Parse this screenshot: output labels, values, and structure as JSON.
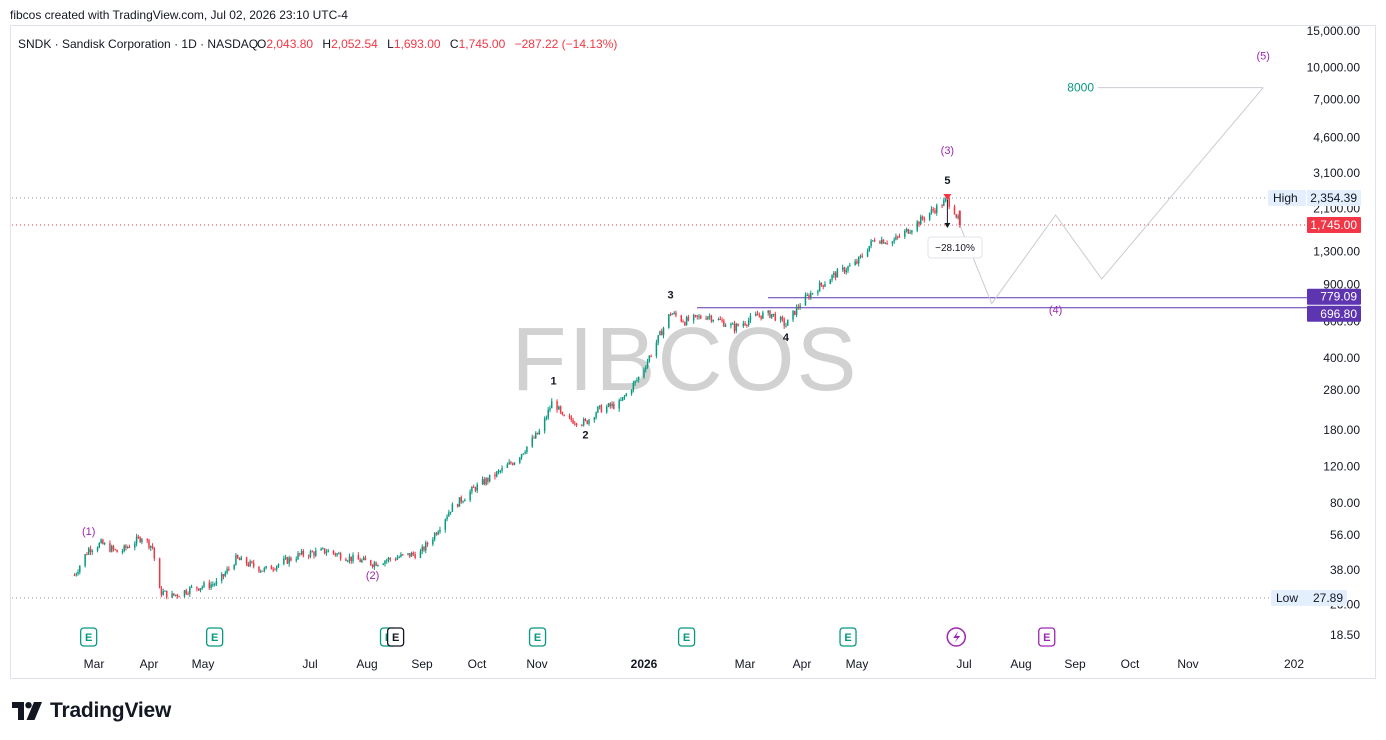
{
  "header": {
    "created_by": "fibcos created with TradingView.com, Jul 02, 2026 23:10 UTC-4"
  },
  "legend": {
    "symbol": "SNDK · Sandisk Corporation · 1D · NASDAQ",
    "o_label": "O",
    "o_value": "2,043.80",
    "h_label": "H",
    "h_value": "2,052.54",
    "l_label": "L",
    "l_value": "1,693.00",
    "c_label": "C",
    "c_value": "1,745.00",
    "change": "−287.22 (−14.13%)"
  },
  "watermark": "FIBCOS",
  "brand": {
    "name": "TradingView"
  },
  "colors": {
    "up": "#089981",
    "down": "#f23645",
    "wave_purple": "#9c27b0",
    "zone": "#5e35b1",
    "target_teal": "#089981"
  },
  "chart_data": {
    "type": "candlestick",
    "symbol": "SNDK",
    "interval": "1D",
    "y_scale": "log",
    "y_ticks": [
      "15,000.00",
      "10,000.00",
      "7,000.00",
      "4,600.00",
      "3,100.00",
      "2,100.00",
      "1,300.00",
      "900.00",
      "600.00",
      "400.00",
      "280.00",
      "180.00",
      "120.00",
      "80.00",
      "56.00",
      "38.00",
      "26.00",
      "18.50"
    ],
    "y_tick_values": [
      15000,
      10000,
      7000,
      4600,
      3100,
      2100,
      1300,
      900,
      600,
      400,
      280,
      180,
      120,
      80,
      56,
      38,
      26,
      18.5
    ],
    "x_ticks": [
      "Mar",
      "Apr",
      "May",
      "Jul",
      "Aug",
      "Sep",
      "Oct",
      "Nov",
      "2026",
      "Mar",
      "Apr",
      "May",
      "Jul",
      "Aug",
      "Sep",
      "Oct",
      "Nov",
      "202"
    ],
    "price_path": [
      {
        "date": "2025-02-18",
        "price": 36
      },
      {
        "date": "2025-02-26",
        "price": 48
      },
      {
        "date": "2025-03-05",
        "price": 51
      },
      {
        "date": "2025-03-15",
        "price": 46
      },
      {
        "date": "2025-03-28",
        "price": 55
      },
      {
        "date": "2025-04-03",
        "price": 49
      },
      {
        "date": "2025-04-07",
        "price": 30
      },
      {
        "date": "2025-04-14",
        "price": 28.5
      },
      {
        "date": "2025-04-25",
        "price": 31
      },
      {
        "date": "2025-05-10",
        "price": 33
      },
      {
        "date": "2025-05-20",
        "price": 43
      },
      {
        "date": "2025-06-05",
        "price": 38
      },
      {
        "date": "2025-06-25",
        "price": 45
      },
      {
        "date": "2025-07-10",
        "price": 47
      },
      {
        "date": "2025-07-25",
        "price": 43
      },
      {
        "date": "2025-08-05",
        "price": 41
      },
      {
        "date": "2025-08-20",
        "price": 44
      },
      {
        "date": "2025-09-01",
        "price": 46
      },
      {
        "date": "2025-09-08",
        "price": 55
      },
      {
        "date": "2025-09-18",
        "price": 75
      },
      {
        "date": "2025-10-02",
        "price": 95
      },
      {
        "date": "2025-10-15",
        "price": 112
      },
      {
        "date": "2025-10-25",
        "price": 130
      },
      {
        "date": "2025-11-08",
        "price": 180
      },
      {
        "date": "2025-11-15",
        "price": 255
      },
      {
        "date": "2025-11-20",
        "price": 205
      },
      {
        "date": "2025-12-03",
        "price": 195
      },
      {
        "date": "2025-12-10",
        "price": 225
      },
      {
        "date": "2025-12-22",
        "price": 240
      },
      {
        "date": "2026-01-03",
        "price": 330
      },
      {
        "date": "2026-01-12",
        "price": 475
      },
      {
        "date": "2026-01-20",
        "price": 660
      },
      {
        "date": "2026-01-28",
        "price": 600
      },
      {
        "date": "2026-02-10",
        "price": 640
      },
      {
        "date": "2026-02-25",
        "price": 560
      },
      {
        "date": "2026-03-10",
        "price": 640
      },
      {
        "date": "2026-03-18",
        "price": 650
      },
      {
        "date": "2026-03-26",
        "price": 575
      },
      {
        "date": "2026-04-03",
        "price": 730
      },
      {
        "date": "2026-04-12",
        "price": 860
      },
      {
        "date": "2026-04-22",
        "price": 1000
      },
      {
        "date": "2026-05-05",
        "price": 1150
      },
      {
        "date": "2026-05-15",
        "price": 1500
      },
      {
        "date": "2026-05-25",
        "price": 1450
      },
      {
        "date": "2026-06-05",
        "price": 1700
      },
      {
        "date": "2026-06-15",
        "price": 2000
      },
      {
        "date": "2026-06-25",
        "price": 2300
      },
      {
        "date": "2026-06-29",
        "price": 2050
      },
      {
        "date": "2026-07-02",
        "price": 1745
      }
    ],
    "high": {
      "label": "High",
      "value": "2,354.39",
      "price": 2354.39
    },
    "low": {
      "label": "Low",
      "value": "27.89",
      "price": 27.89
    },
    "last_price": {
      "value": "1,745.00",
      "price": 1745
    },
    "zone": {
      "upper": "779.09",
      "lower": "696.80",
      "upper_price": 779.09,
      "lower_price": 696.8
    },
    "measure_label": "−28.10%",
    "target_label": "8000",
    "projection": [
      {
        "date": "2026-07-02",
        "price": 1745
      },
      {
        "date": "2026-07-20",
        "price": 730
      },
      {
        "date": "2026-08-25",
        "price": 1950
      },
      {
        "date": "2026-09-20",
        "price": 960
      },
      {
        "date": "2026-12-20",
        "price": 8000
      }
    ],
    "wave_labels": [
      {
        "text": "(1)",
        "date": "2025-02-26",
        "price": 48,
        "color": "purple",
        "pos": "above"
      },
      {
        "text": "(2)",
        "date": "2025-08-05",
        "price": 41,
        "color": "purple",
        "pos": "below"
      },
      {
        "text": "1",
        "date": "2025-11-15",
        "price": 255,
        "color": "black",
        "pos": "above"
      },
      {
        "text": "2",
        "date": "2025-12-03",
        "price": 195,
        "color": "black",
        "pos": "below"
      },
      {
        "text": "3",
        "date": "2026-01-20",
        "price": 660,
        "color": "black",
        "pos": "above"
      },
      {
        "text": "4",
        "date": "2026-03-26",
        "price": 575,
        "color": "black",
        "pos": "below"
      },
      {
        "text": "5",
        "date": "2026-06-25",
        "price": 2354,
        "color": "black",
        "pos": "above"
      },
      {
        "text": "(3)",
        "date": "2026-06-25",
        "price": 2354,
        "color": "purple",
        "pos": "above2"
      },
      {
        "text": "(4)",
        "date": "2026-08-25",
        "price": 779,
        "color": "purple",
        "pos": "below"
      },
      {
        "text": "(5)",
        "date": "2026-12-20",
        "price": 8000,
        "color": "purple",
        "pos": "above3"
      }
    ],
    "events": [
      {
        "type": "earnings",
        "label": "E",
        "date": "2025-02-26"
      },
      {
        "type": "earnings",
        "label": "E",
        "date": "2025-05-08"
      },
      {
        "type": "earnings",
        "label": "E",
        "date": "2025-08-14"
      },
      {
        "type": "event",
        "label": "E",
        "date": "2025-08-18"
      },
      {
        "type": "earnings",
        "label": "E",
        "date": "2025-11-06"
      },
      {
        "type": "earnings",
        "label": "E",
        "date": "2026-01-29"
      },
      {
        "type": "earnings",
        "label": "E",
        "date": "2026-04-30"
      },
      {
        "type": "dividend",
        "label": "",
        "date": "2026-06-30"
      },
      {
        "type": "earnings",
        "label": "E",
        "date": "2026-08-20"
      }
    ]
  }
}
